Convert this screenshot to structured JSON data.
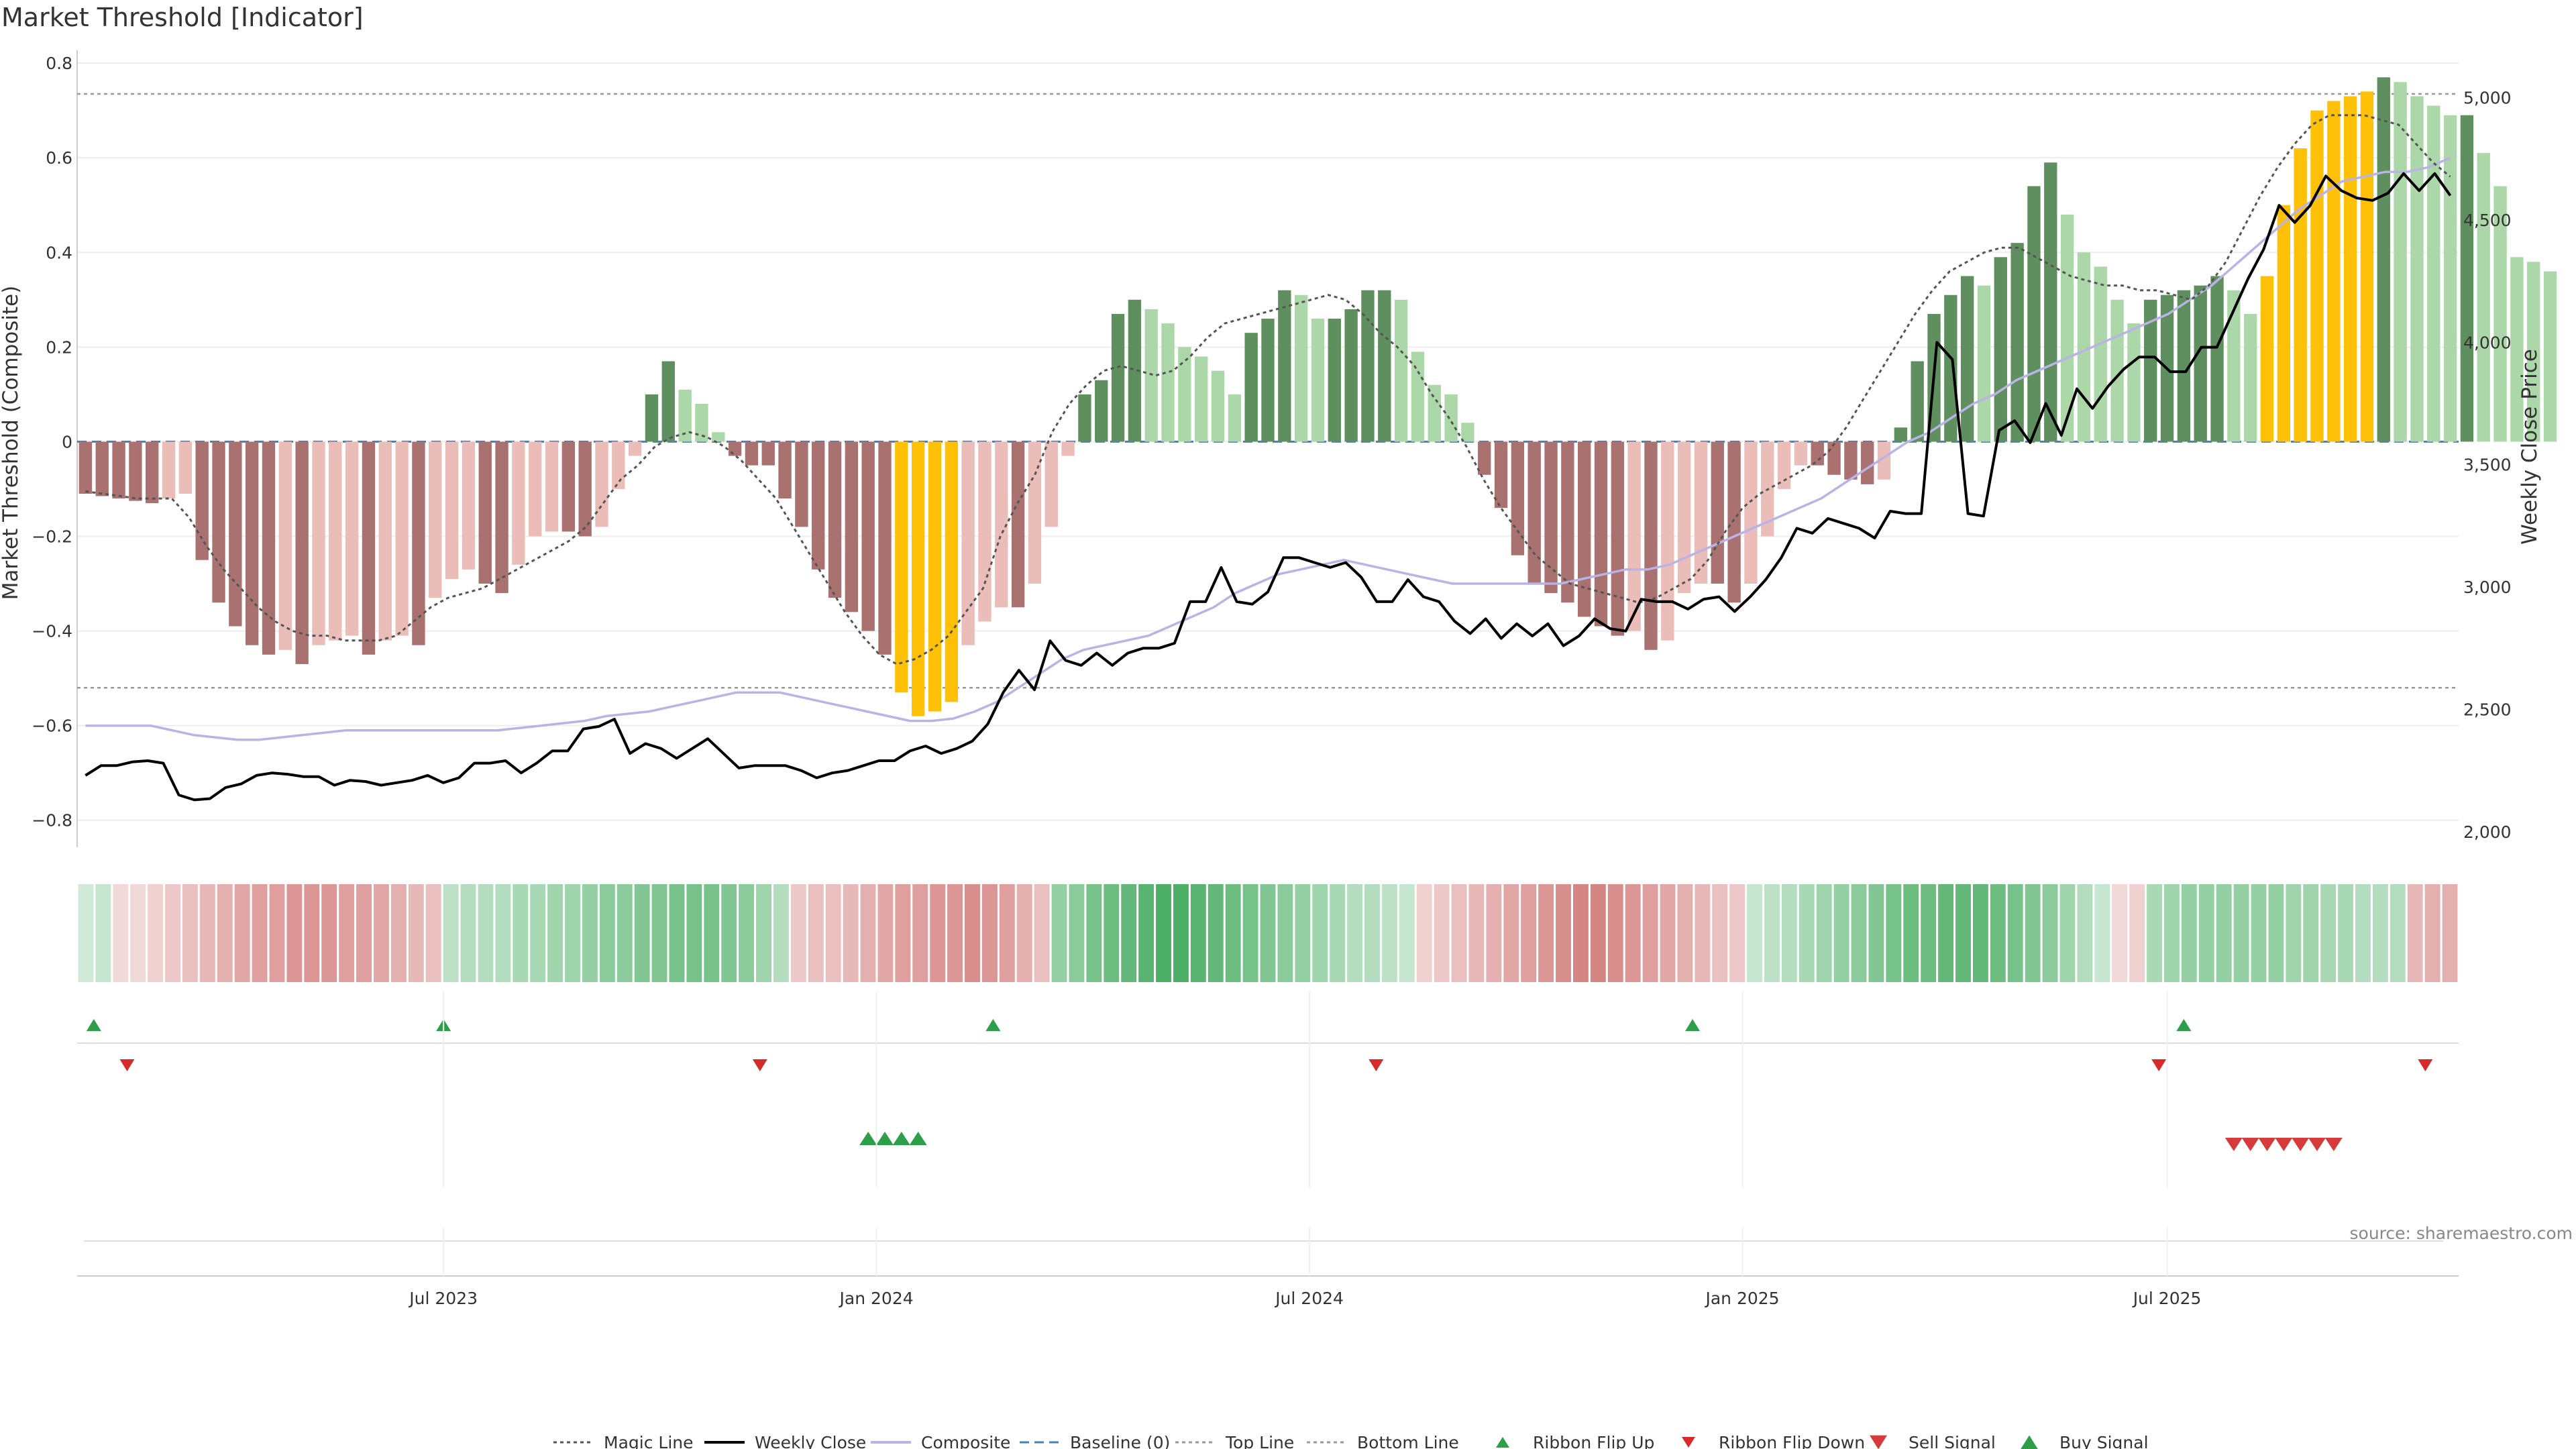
{
  "title": "Market Threshold [Indicator]",
  "source": "source: sharemaestro.com",
  "chart_data": {
    "type": "bar",
    "y_left_label": "Market Threshold (Composite)",
    "y_right_label": "Weekly Close Price",
    "ylim_left": [
      -0.85,
      0.82
    ],
    "ylim_right": [
      1950,
      5180
    ],
    "y_left_ticks": [
      {
        "v": 0.8,
        "label": "0.8"
      },
      {
        "v": 0.6,
        "label": "0.6"
      },
      {
        "v": 0.4,
        "label": "0.4"
      },
      {
        "v": 0.2,
        "label": "0.2"
      },
      {
        "v": 0,
        "label": "0"
      },
      {
        "v": -0.2,
        "label": "−0.2"
      },
      {
        "v": -0.4,
        "label": "−0.4"
      },
      {
        "v": -0.6,
        "label": "−0.6"
      },
      {
        "v": -0.8,
        "label": "−0.8"
      }
    ],
    "y_right_ticks": [
      {
        "v": 2000,
        "label": "2,000"
      },
      {
        "v": 2500,
        "label": "2,500"
      },
      {
        "v": 3000,
        "label": "3,000"
      },
      {
        "v": 3500,
        "label": "3,500"
      },
      {
        "v": 4000,
        "label": "4,000"
      },
      {
        "v": 4500,
        "label": "4,500"
      },
      {
        "v": 5000,
        "label": "5,000"
      }
    ],
    "x_ticks": [
      {
        "label": "Jul 2023",
        "week": 22
      },
      {
        "label": "Jan 2024",
        "week": 48
      },
      {
        "label": "Jul 2024",
        "week": 74
      },
      {
        "label": "Jan 2025",
        "week": 100
      },
      {
        "label": "Jul 2025",
        "week": 125.5
      }
    ],
    "x_range_weeks": [
      0,
      143
    ],
    "top_line": 0.735,
    "bottom_line": -0.52,
    "baseline": 0,
    "composite": [
      -0.11,
      -0.115,
      -0.12,
      -0.125,
      -0.13,
      -0.12,
      -0.11,
      -0.25,
      -0.34,
      -0.39,
      -0.43,
      -0.45,
      -0.44,
      -0.47,
      -0.43,
      -0.42,
      -0.41,
      -0.45,
      -0.42,
      -0.41,
      -0.43,
      -0.33,
      -0.29,
      -0.27,
      -0.3,
      -0.32,
      -0.26,
      -0.2,
      -0.19,
      -0.19,
      -0.2,
      -0.18,
      -0.1,
      -0.03,
      0.1,
      0.17,
      0.11,
      0.08,
      0.02,
      -0.03,
      -0.05,
      -0.05,
      -0.12,
      -0.18,
      -0.27,
      -0.33,
      -0.36,
      -0.4,
      -0.45,
      -0.53,
      -0.58,
      -0.57,
      -0.55,
      -0.43,
      -0.38,
      -0.35,
      -0.35,
      -0.3,
      -0.18,
      -0.03,
      0.1,
      0.13,
      0.27,
      0.3,
      0.28,
      0.25,
      0.2,
      0.18,
      0.15,
      0.1,
      0.23,
      0.26,
      0.32,
      0.31,
      0.26,
      0.26,
      0.28,
      0.32,
      0.32,
      0.3,
      0.19,
      0.12,
      0.1,
      0.04,
      -0.07,
      -0.14,
      -0.24,
      -0.3,
      -0.32,
      -0.34,
      -0.37,
      -0.39,
      -0.41,
      -0.4,
      -0.44,
      -0.42,
      -0.32,
      -0.3,
      -0.3,
      -0.34,
      -0.3,
      -0.2,
      -0.1,
      -0.05,
      -0.05,
      -0.07,
      -0.08,
      -0.09,
      -0.08,
      0.03,
      0.17,
      0.27,
      0.31,
      0.35,
      0.33,
      0.39,
      0.42,
      0.54,
      0.59,
      0.48,
      0.4,
      0.37,
      0.3,
      0.25,
      0.3,
      0.31,
      0.32,
      0.33,
      0.35,
      0.32,
      0.27,
      0.35,
      0.5,
      0.62,
      0.7,
      0.72,
      0.73,
      0.74,
      0.77,
      0.76,
      0.73,
      0.71,
      0.69,
      0.69,
      0.61,
      0.54,
      0.39,
      0.38,
      0.36
    ],
    "weekly_close": [
      2230,
      2270,
      2270,
      2285,
      2290,
      2280,
      2150,
      2130,
      2135,
      2180,
      2195,
      2230,
      2240,
      2235,
      2225,
      2225,
      2190,
      2210,
      2205,
      2190,
      2200,
      2210,
      2230,
      2200,
      2220,
      2280,
      2280,
      2290,
      2240,
      2280,
      2330,
      2330,
      2420,
      2430,
      2460,
      2320,
      2360,
      2340,
      2300,
      2340,
      2380,
      2320,
      2260,
      2270,
      2270,
      2270,
      2250,
      2220,
      2240,
      2250,
      2270,
      2290,
      2290,
      2330,
      2350,
      2320,
      2340,
      2370,
      2440,
      2570,
      2660,
      2580,
      2780,
      2700,
      2680,
      2730,
      2680,
      2730,
      2750,
      2750,
      2770,
      2940,
      2940,
      3080,
      2940,
      2930,
      2980,
      3120,
      3120,
      3100,
      3080,
      3100,
      3040,
      2940,
      2940,
      3030,
      2960,
      2940,
      2860,
      2810,
      2870,
      2790,
      2850,
      2800,
      2850,
      2760,
      2800,
      2870,
      2830,
      2820,
      2950,
      2940,
      2940,
      2910,
      2950,
      2960,
      2900,
      2960,
      3030,
      3120,
      3240,
      3220,
      3280,
      3260,
      3240,
      3200,
      3310,
      3300,
      3300,
      4000,
      3930,
      3300,
      3290,
      3640,
      3680,
      3590,
      3750,
      3620,
      3810,
      3730,
      3820,
      3890,
      3940,
      3940,
      3880,
      3880,
      3980,
      3980,
      4120,
      4260,
      4380,
      4560,
      4490,
      4560,
      4680,
      4620,
      4590,
      4580,
      4610,
      4690,
      4620,
      4690,
      4600
    ],
    "magic_line": [
      -0.105,
      -0.11,
      -0.115,
      -0.12,
      -0.12,
      -0.12,
      -0.16,
      -0.22,
      -0.27,
      -0.31,
      -0.35,
      -0.38,
      -0.4,
      -0.41,
      -0.41,
      -0.42,
      -0.42,
      -0.42,
      -0.41,
      -0.38,
      -0.35,
      -0.33,
      -0.32,
      -0.31,
      -0.29,
      -0.27,
      -0.25,
      -0.23,
      -0.21,
      -0.18,
      -0.13,
      -0.08,
      -0.05,
      -0.01,
      0.01,
      0.02,
      0.01,
      -0.01,
      -0.04,
      -0.08,
      -0.12,
      -0.18,
      -0.24,
      -0.3,
      -0.36,
      -0.41,
      -0.45,
      -0.47,
      -0.46,
      -0.44,
      -0.41,
      -0.36,
      -0.31,
      -0.2,
      -0.13,
      -0.07,
      0.02,
      0.08,
      0.12,
      0.15,
      0.16,
      0.15,
      0.14,
      0.15,
      0.18,
      0.22,
      0.25,
      0.26,
      0.27,
      0.28,
      0.29,
      0.3,
      0.31,
      0.3,
      0.27,
      0.23,
      0.2,
      0.16,
      0.1,
      0.05,
      -0.01,
      -0.08,
      -0.14,
      -0.19,
      -0.24,
      -0.27,
      -0.3,
      -0.31,
      -0.32,
      -0.33,
      -0.34,
      -0.33,
      -0.31,
      -0.29,
      -0.25,
      -0.19,
      -0.14,
      -0.11,
      -0.09,
      -0.07,
      -0.05,
      -0.02,
      0.03,
      0.09,
      0.15,
      0.21,
      0.27,
      0.32,
      0.36,
      0.38,
      0.4,
      0.41,
      0.41,
      0.39,
      0.37,
      0.35,
      0.34,
      0.33,
      0.33,
      0.32,
      0.32,
      0.31,
      0.3,
      0.33,
      0.38,
      0.45,
      0.52,
      0.58,
      0.63,
      0.67,
      0.69,
      0.69,
      0.69,
      0.68,
      0.67,
      0.63,
      0.59,
      0.56
    ],
    "composite_smooth": [
      -0.6,
      -0.6,
      -0.6,
      -0.6,
      -0.61,
      -0.62,
      -0.625,
      -0.63,
      -0.63,
      -0.625,
      -0.62,
      -0.615,
      -0.61,
      -0.61,
      -0.61,
      -0.61,
      -0.61,
      -0.61,
      -0.61,
      -0.61,
      -0.605,
      -0.6,
      -0.595,
      -0.59,
      -0.58,
      -0.575,
      -0.57,
      -0.56,
      -0.55,
      -0.54,
      -0.53,
      -0.53,
      -0.53,
      -0.54,
      -0.55,
      -0.56,
      -0.57,
      -0.58,
      -0.59,
      -0.59,
      -0.585,
      -0.57,
      -0.55,
      -0.52,
      -0.49,
      -0.46,
      -0.44,
      -0.43,
      -0.42,
      -0.41,
      -0.39,
      -0.37,
      -0.35,
      -0.32,
      -0.3,
      -0.28,
      -0.27,
      -0.26,
      -0.25,
      -0.26,
      -0.27,
      -0.28,
      -0.29,
      -0.3,
      -0.3,
      -0.3,
      -0.3,
      -0.3,
      -0.3,
      -0.29,
      -0.28,
      -0.27,
      -0.27,
      -0.26,
      -0.24,
      -0.22,
      -0.2,
      -0.18,
      -0.16,
      -0.14,
      -0.12,
      -0.09,
      -0.06,
      -0.03,
      0.0,
      0.02,
      0.05,
      0.08,
      0.1,
      0.13,
      0.15,
      0.17,
      0.19,
      0.21,
      0.23,
      0.25,
      0.27,
      0.3,
      0.33,
      0.37,
      0.41,
      0.45,
      0.49,
      0.52,
      0.55,
      0.56,
      0.57,
      0.57,
      0.58,
      0.6
    ],
    "composite_smooth_start_week": 0,
    "highlight_weeks": [
      49,
      50,
      51,
      52,
      131,
      132,
      133,
      134,
      135,
      136,
      137
    ],
    "ribbon_strength": [
      0.15,
      0.2,
      -0.15,
      -0.15,
      -0.2,
      -0.25,
      -0.3,
      -0.35,
      -0.4,
      -0.45,
      -0.5,
      -0.5,
      -0.55,
      -0.55,
      -0.55,
      -0.5,
      -0.5,
      -0.45,
      -0.4,
      -0.35,
      -0.3,
      0.25,
      0.3,
      0.3,
      0.3,
      0.35,
      0.35,
      0.4,
      0.4,
      0.45,
      0.5,
      0.5,
      0.55,
      0.55,
      0.6,
      0.6,
      0.6,
      0.55,
      0.5,
      0.4,
      0.3,
      -0.25,
      -0.3,
      -0.3,
      -0.35,
      -0.4,
      -0.45,
      -0.5,
      -0.5,
      -0.55,
      -0.55,
      -0.6,
      -0.55,
      -0.5,
      -0.4,
      -0.3,
      0.45,
      0.5,
      0.6,
      0.65,
      0.7,
      0.75,
      0.8,
      0.8,
      0.75,
      0.7,
      0.65,
      0.6,
      0.55,
      0.5,
      0.45,
      0.4,
      0.35,
      0.3,
      0.3,
      0.25,
      0.2,
      -0.2,
      -0.25,
      -0.3,
      -0.35,
      -0.4,
      -0.45,
      -0.5,
      -0.55,
      -0.6,
      -0.65,
      -0.65,
      -0.6,
      -0.55,
      -0.5,
      -0.45,
      -0.4,
      -0.35,
      -0.3,
      -0.25,
      0.2,
      0.25,
      0.3,
      0.35,
      0.4,
      0.45,
      0.5,
      0.55,
      0.6,
      0.65,
      0.65,
      0.7,
      0.7,
      0.7,
      0.65,
      0.6,
      0.55,
      0.5,
      0.4,
      0.3,
      0.2,
      -0.15,
      -0.2,
      0.35,
      0.4,
      0.45,
      0.45,
      0.45,
      0.45,
      0.45,
      0.45,
      0.4,
      0.4,
      0.35,
      0.35,
      0.3,
      0.3,
      0.3,
      -0.35,
      -0.4,
      -0.4
    ],
    "ribbon_flip_up_weeks": [
      1,
      22,
      55,
      97,
      126.5
    ],
    "ribbon_flip_down_weeks": [
      3,
      41,
      78,
      125,
      141
    ],
    "buy_signal_weeks": [
      47,
      48,
      49,
      50
    ],
    "sell_signal_weeks": [
      129.5,
      130.5,
      131.5,
      132.5,
      133.5,
      134.5,
      135.5
    ],
    "legend": [
      {
        "label": "Magic Line",
        "kind": "dotted-line",
        "color": "#555555"
      },
      {
        "label": "Weekly Close",
        "kind": "line",
        "color": "#000000"
      },
      {
        "label": "Composite",
        "kind": "line",
        "color": "#b9b3e6"
      },
      {
        "label": "Baseline (0)",
        "kind": "dashed-line",
        "color": "#4a7fb5"
      },
      {
        "label": "Top Line",
        "kind": "dotted-line",
        "color": "#999999"
      },
      {
        "label": "Bottom Line",
        "kind": "dotted-line",
        "color": "#999999"
      },
      {
        "label": "Ribbon Flip Up",
        "kind": "tri-up-small",
        "color": "#2e9e48"
      },
      {
        "label": "Ribbon Flip Down",
        "kind": "tri-down-small",
        "color": "#d62b2b"
      },
      {
        "label": "Sell Signal",
        "kind": "tri-down",
        "color": "#d63b3b"
      },
      {
        "label": "Buy Signal",
        "kind": "tri-up",
        "color": "#2e9e48"
      }
    ],
    "colors": {
      "bull_strong": "#5f8f5f",
      "bull_weak": "#acd7a8",
      "bear_strong": "#a97170",
      "bear_weak": "#ebbdb9",
      "highlight": "#ffc107",
      "composite": "#b9b3e6",
      "baseline": "#4a7fb5",
      "close": "#000000",
      "magic": "#555555"
    }
  }
}
